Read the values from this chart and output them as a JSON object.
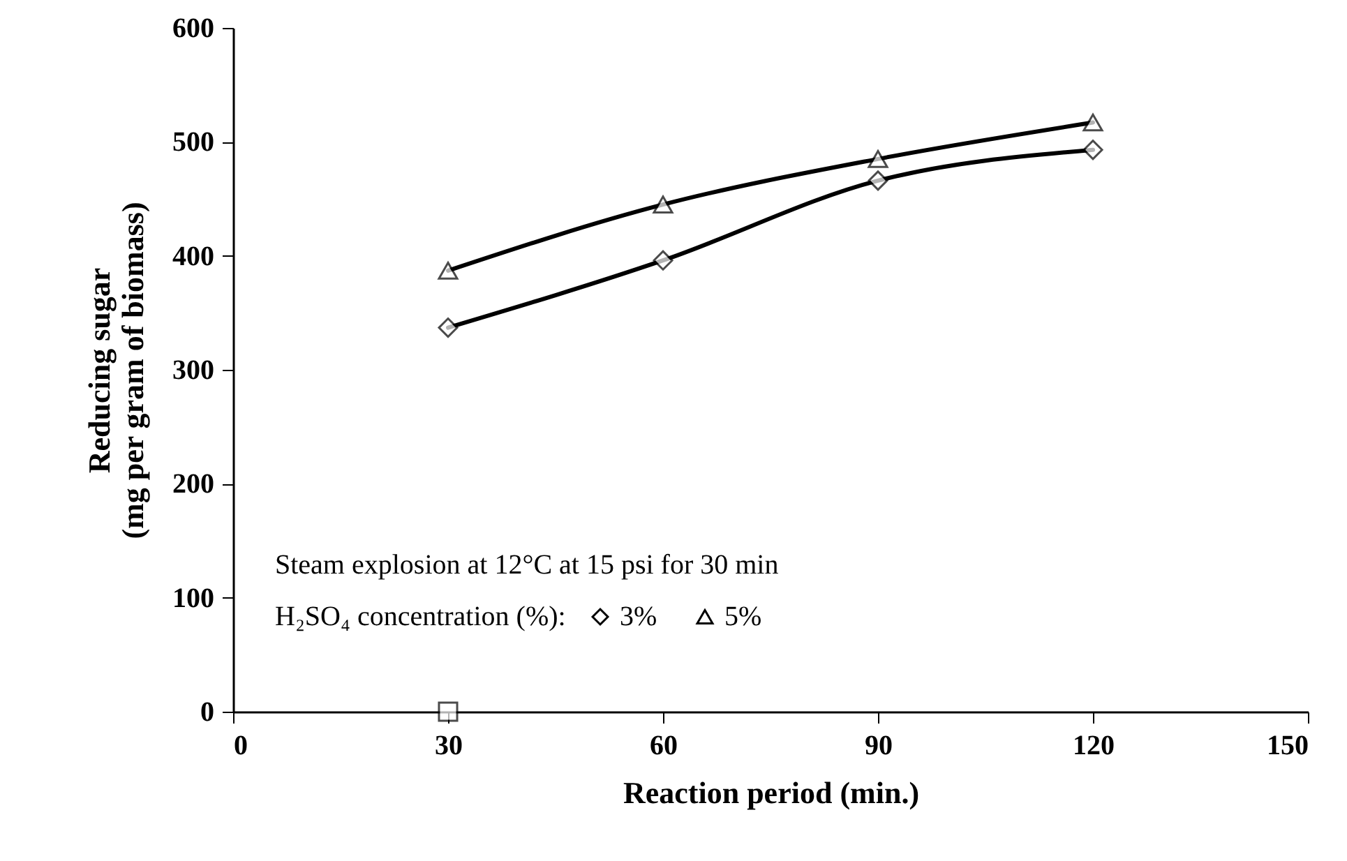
{
  "chart_data": {
    "type": "line",
    "xlabel": "Reaction period (min.)",
    "ylabel": "Reducing sugar\n(mg per gram of biomass)",
    "legend_title": "H₂SO₄ concentration (%):",
    "annotations": [
      "Steam explosion at 12°C at 15 psi for 30 min"
    ],
    "x": [
      30,
      60,
      90,
      120
    ],
    "series": [
      {
        "name": "3%",
        "color": "#000000",
        "marker": "diamond",
        "values": [
          337,
          396,
          466,
          493
        ]
      },
      {
        "name": "5%",
        "color": "#000000",
        "marker": "triangle",
        "values": [
          387,
          445,
          485,
          517
        ]
      },
      {
        "type": "scatter",
        "color": "#000000",
        "marker": "square",
        "x": [
          30
        ],
        "values": [
          0
        ]
      }
    ],
    "xlim": [
      0,
      150
    ],
    "xticks": [
      0,
      30,
      60,
      90,
      120,
      150
    ],
    "ylim": [
      0,
      600
    ],
    "yticks": [
      0,
      100,
      200,
      300,
      400,
      500,
      600
    ],
    "grid": false,
    "legend": "bottom left"
  }
}
